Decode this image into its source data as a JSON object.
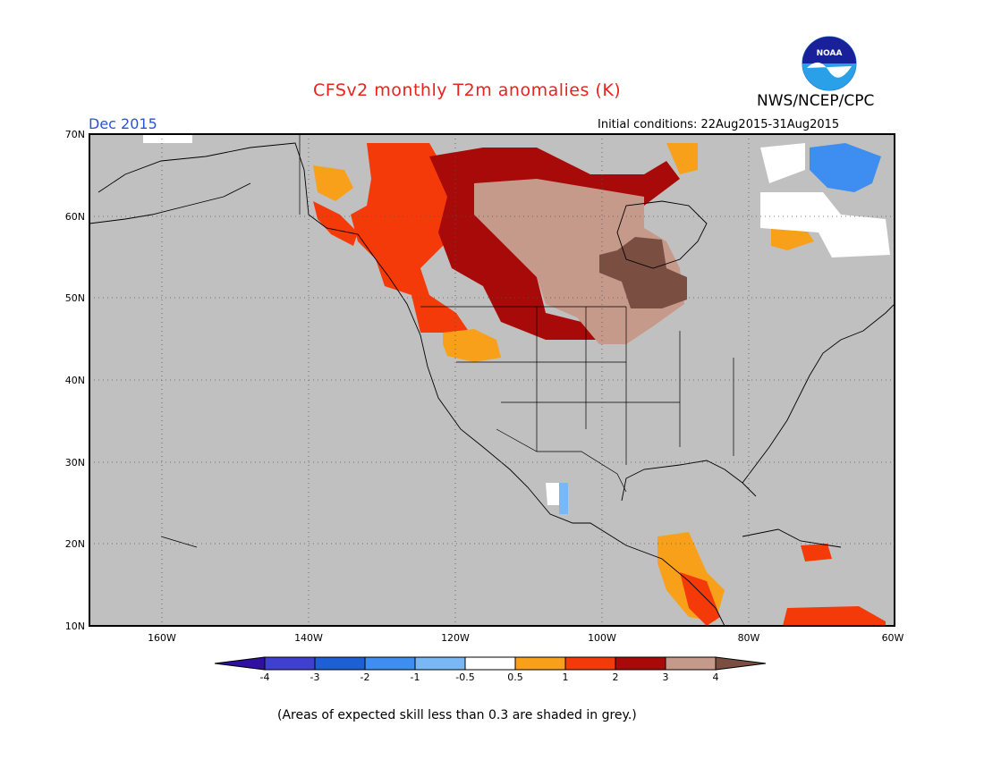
{
  "header": {
    "title": "CFSv2 monthly T2m anomalies (K)",
    "org": "NWS/NCEP/CPC",
    "month": "Dec 2015",
    "initial_conditions": "Initial conditions: 22Aug2015-31Aug2015"
  },
  "logo": {
    "text": "NOAA",
    "icon": "noaa-logo-icon"
  },
  "map": {
    "background_color": "#c0c0c0",
    "lat_labels": [
      "70N",
      "60N",
      "50N",
      "40N",
      "30N",
      "20N",
      "10N"
    ],
    "lon_labels": [
      "160W",
      "140W",
      "120W",
      "100W",
      "80W",
      "60W"
    ]
  },
  "legend": {
    "tick_labels": [
      "-4",
      "-3",
      "-2",
      "-1",
      "-0.5",
      "0.5",
      "1",
      "2",
      "3",
      "4"
    ],
    "colors": [
      "#3010a0",
      "#4040d0",
      "#1f5fd6",
      "#3d8ef0",
      "#7ab8f5",
      "#ffffff",
      "#f8a01a",
      "#f53a0a",
      "#a80a0a",
      "#c69a8a",
      "#7a4f42"
    ]
  },
  "footnote": "(Areas of expected skill less than 0.3 are shaded in grey.)"
}
